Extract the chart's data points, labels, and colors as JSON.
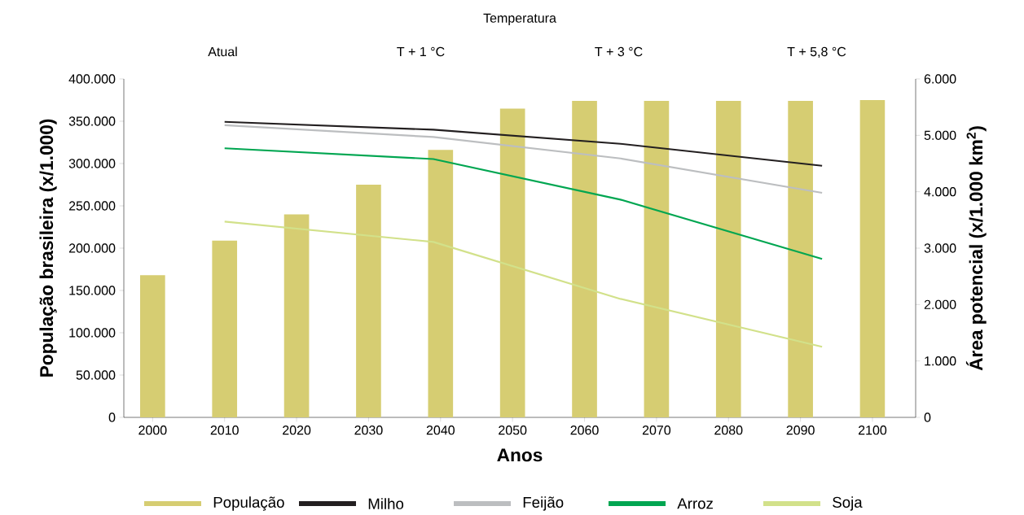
{
  "chart_data": {
    "type": "bar",
    "xlabel": "Anos",
    "ylabel": "População brasileira (x/1.000)",
    "y2label": "Área potencial (x/1.000 km$^{2}$)",
    "annotations": [
      "Temperatura",
      "Atual",
      "T + 1 °C",
      "T + 3 °C",
      "T + 5,8 °C"
    ],
    "x": [
      2000,
      2010,
      2020,
      2030,
      2040,
      2050,
      2060,
      2070,
      2080,
      2090,
      2100
    ],
    "series": [
      {
        "name": "População",
        "color": "#d6cd72",
        "values": [
          168000,
          209000,
          240000,
          275000,
          316000,
          365000,
          374000,
          374000,
          374000,
          374000,
          375000
        ]
      },
      {
        "name": "Milho",
        "type": "line",
        "axis": "y2",
        "color": "#231f20",
        "x": [
          2010,
          2039,
          2065,
          2093
        ],
        "values": [
          5240,
          5100,
          4850,
          4460
        ]
      },
      {
        "name": "Feijão",
        "type": "line",
        "axis": "y2",
        "color": "#bcbec0",
        "x": [
          2010,
          2039,
          2065,
          2093
        ],
        "values": [
          5180,
          4970,
          4590,
          3980
        ]
      },
      {
        "name": "Arroz",
        "type": "line",
        "axis": "y2",
        "color": "#00a651",
        "x": [
          2010,
          2039,
          2065,
          2093
        ],
        "values": [
          4770,
          4580,
          3860,
          2810
        ]
      },
      {
        "name": "Soja",
        "type": "line",
        "axis": "y2",
        "color": "#d2e18a",
        "x": [
          2010,
          2039,
          2065,
          2093
        ],
        "values": [
          3470,
          3110,
          2100,
          1250
        ]
      }
    ],
    "xlim": [
      1996,
      2106
    ],
    "xticks": [
      2000,
      2010,
      2020,
      2030,
      2040,
      2050,
      2060,
      2070,
      2080,
      2090,
      2100
    ],
    "ylim": [
      0,
      400000
    ],
    "yticks": [
      {
        "value": 0,
        "label": "0"
      },
      {
        "value": 50000,
        "label": "50.000"
      },
      {
        "value": 100000,
        "label": "100.000"
      },
      {
        "value": 150000,
        "label": "150.000"
      },
      {
        "value": 200000,
        "label": "200.000"
      },
      {
        "value": 250000,
        "label": "250.000"
      },
      {
        "value": 300000,
        "label": "300.000"
      },
      {
        "value": 350000,
        "label": "350.000"
      },
      {
        "value": 400000,
        "label": "400.000"
      }
    ],
    "y2lim": [
      0,
      6000
    ],
    "y2ticks": [
      {
        "value": 0,
        "label": "0"
      },
      {
        "value": 1000,
        "label": "1.000"
      },
      {
        "value": 2000,
        "label": "2.000"
      },
      {
        "value": 3000,
        "label": "3.000"
      },
      {
        "value": 4000,
        "label": "4.000"
      },
      {
        "value": 5000,
        "label": "5.000"
      },
      {
        "value": 6000,
        "label": "6.000"
      }
    ],
    "grid": false,
    "legend": "bottom",
    "marker": "none",
    "line_style": "solid"
  }
}
